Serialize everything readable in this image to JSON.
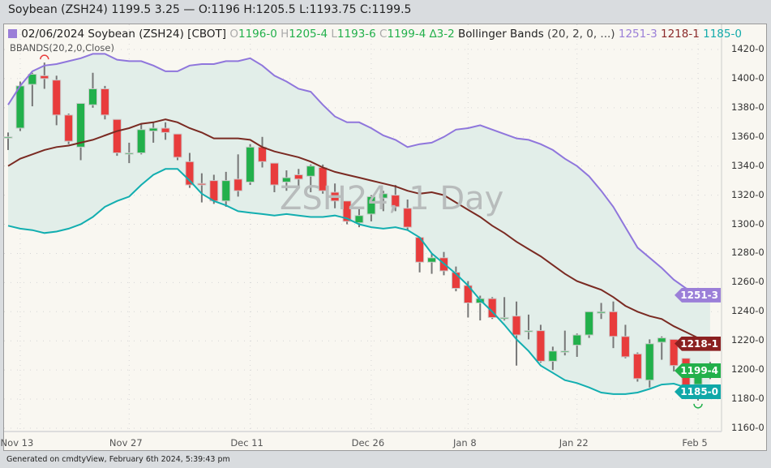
{
  "header": {
    "quote": "Soybean (ZSH24) 1199.5 3.25 — O:1196 H:1205.5 L:1193.75 C:1199.5"
  },
  "legend": {
    "overlap_text": "BBANDS(20,2,0,Close)",
    "instrument": "02/06/2024 Soybean (ZSH24) [CBOT]",
    "o_label": "O",
    "o_value": "1196-0",
    "h_label": "H",
    "h_value": "1205-4",
    "l_label": "L",
    "l_value": "1193-6",
    "c_label": "C",
    "c_value": "1199-4",
    "change": "∆3-2",
    "indicator": "Bollinger Bands",
    "indicator_params": "(20, 2, 0, ...)",
    "upper": "1251-3",
    "middle": "1218-1",
    "lower": "1185-0"
  },
  "watermark": "ZSH24, 1 Day",
  "footer": "Generated on cmdtyView, February 6th 2024, 5:39:43 pm",
  "price_tags": [
    {
      "label": "1251-3",
      "value": 1251.375,
      "color": "#9b7fd8"
    },
    {
      "label": "1218-1",
      "value": 1218.125,
      "color": "#8b2020"
    },
    {
      "label": "1199-4",
      "value": 1199.5,
      "color": "#22b04b"
    },
    {
      "label": "1185-0",
      "value": 1185.0,
      "color": "#10a8a8"
    }
  ],
  "chart_data": {
    "type": "candlestick",
    "ylim": [
      1160,
      1425
    ],
    "y_ticks": [
      1160,
      1180,
      1200,
      1220,
      1240,
      1260,
      1280,
      1300,
      1320,
      1340,
      1360,
      1380,
      1400,
      1420
    ],
    "y_tick_labels": [
      "1160-0",
      "1180-0",
      "1200-0",
      "1220-0",
      "1240-0",
      "1260-0",
      "1280-0",
      "1300-0",
      "1320-0",
      "1340-0",
      "1360-0",
      "1380-0",
      "1400-0",
      "1420-0"
    ],
    "x_tick_labels": [
      {
        "label": "Nov 13",
        "date": "2023-11-13"
      },
      {
        "label": "Nov 27",
        "date": "2023-11-27"
      },
      {
        "label": "Dec 11",
        "date": "2023-12-11"
      },
      {
        "label": "Dec 26",
        "date": "2023-12-26"
      },
      {
        "label": "Jan 8",
        "date": "2024-01-08"
      },
      {
        "label": "Jan 22",
        "date": "2024-01-22"
      },
      {
        "label": "Feb 5",
        "date": "2024-02-05"
      }
    ],
    "grid": true,
    "colors": {
      "up": "#22b04b",
      "down": "#e83c3c",
      "upper": "#8f76dc",
      "middle": "#7a2a22",
      "lower": "#12aeb0",
      "band_fill": "#e2eee9"
    },
    "dates": [
      "2023-11-10",
      "2023-11-13",
      "2023-11-14",
      "2023-11-15",
      "2023-11-16",
      "2023-11-17",
      "2023-11-20",
      "2023-11-21",
      "2023-11-22",
      "2023-11-24",
      "2023-11-27",
      "2023-11-28",
      "2023-11-29",
      "2023-11-30",
      "2023-12-01",
      "2023-12-04",
      "2023-12-05",
      "2023-12-06",
      "2023-12-07",
      "2023-12-08",
      "2023-12-11",
      "2023-12-12",
      "2023-12-13",
      "2023-12-14",
      "2023-12-15",
      "2023-12-18",
      "2023-12-19",
      "2023-12-20",
      "2023-12-21",
      "2023-12-22",
      "2023-12-26",
      "2023-12-27",
      "2023-12-28",
      "2023-12-29",
      "2024-01-02",
      "2024-01-03",
      "2024-01-04",
      "2024-01-05",
      "2024-01-08",
      "2024-01-09",
      "2024-01-10",
      "2024-01-11",
      "2024-01-12",
      "2024-01-16",
      "2024-01-17",
      "2024-01-18",
      "2024-01-19",
      "2024-01-22",
      "2024-01-23",
      "2024-01-24",
      "2024-01-25",
      "2024-01-26",
      "2024-01-29",
      "2024-01-30",
      "2024-01-31",
      "2024-02-01",
      "2024-02-02",
      "2024-02-05",
      "2024-02-06"
    ],
    "ohlc": [
      [
        1360,
        1363,
        1351,
        1360
      ],
      [
        1366,
        1398,
        1364,
        1395
      ],
      [
        1396,
        1404,
        1381,
        1403
      ],
      [
        1402,
        1411,
        1393,
        1400
      ],
      [
        1399,
        1402,
        1368,
        1375
      ],
      [
        1375,
        1376,
        1355,
        1357
      ],
      [
        1353,
        1383,
        1344,
        1383
      ],
      [
        1382,
        1404,
        1380,
        1393
      ],
      [
        1393,
        1395,
        1372,
        1375
      ],
      [
        1372,
        1372,
        1347,
        1349
      ],
      [
        1349,
        1356,
        1342,
        1349
      ],
      [
        1349,
        1369,
        1348,
        1365
      ],
      [
        1364,
        1370,
        1356,
        1366
      ],
      [
        1366,
        1370,
        1358,
        1363
      ],
      [
        1362,
        1362,
        1344,
        1346
      ],
      [
        1343,
        1349,
        1325,
        1327
      ],
      [
        1328,
        1335,
        1315,
        1327
      ],
      [
        1330,
        1334,
        1314,
        1316
      ],
      [
        1316,
        1336,
        1312,
        1330
      ],
      [
        1331,
        1348,
        1319,
        1323
      ],
      [
        1329,
        1355,
        1327,
        1353
      ],
      [
        1353,
        1360,
        1339,
        1343
      ],
      [
        1342,
        1342,
        1322,
        1327
      ],
      [
        1329,
        1337,
        1323,
        1332
      ],
      [
        1334,
        1338,
        1326,
        1331
      ],
      [
        1333,
        1341,
        1322,
        1340
      ],
      [
        1339,
        1341,
        1321,
        1323
      ],
      [
        1322,
        1328,
        1311,
        1316
      ],
      [
        1316,
        1316,
        1300,
        1302
      ],
      [
        1301,
        1311,
        1298,
        1306
      ],
      [
        1307,
        1320,
        1302,
        1319
      ],
      [
        1318,
        1323,
        1309,
        1321
      ],
      [
        1320,
        1327,
        1309,
        1312
      ],
      [
        1311,
        1317,
        1296,
        1298
      ],
      [
        1291,
        1291,
        1267,
        1274
      ],
      [
        1274,
        1280,
        1266,
        1277
      ],
      [
        1277,
        1281,
        1265,
        1268
      ],
      [
        1267,
        1271,
        1254,
        1256
      ],
      [
        1258,
        1261,
        1236,
        1246
      ],
      [
        1246,
        1251,
        1234,
        1249
      ],
      [
        1249,
        1250,
        1235,
        1236
      ],
      [
        1236,
        1250,
        1234,
        1236
      ],
      [
        1237,
        1247,
        1203,
        1224
      ],
      [
        1227,
        1238,
        1221,
        1227
      ],
      [
        1227,
        1231,
        1205,
        1206
      ],
      [
        1206,
        1216,
        1200,
        1213
      ],
      [
        1213,
        1227,
        1210,
        1213
      ],
      [
        1217,
        1225,
        1209,
        1224
      ],
      [
        1224,
        1240,
        1222,
        1240
      ],
      [
        1239,
        1246,
        1235,
        1240
      ],
      [
        1240,
        1247,
        1215,
        1223
      ],
      [
        1223,
        1231,
        1208,
        1209
      ],
      [
        1211,
        1212,
        1192,
        1194
      ],
      [
        1193,
        1221,
        1188,
        1218
      ],
      [
        1219,
        1223,
        1207,
        1222
      ],
      [
        1221,
        1221,
        1199,
        1203
      ],
      [
        1208,
        1208,
        1187,
        1189
      ],
      [
        1190,
        1198,
        1179,
        1196
      ],
      [
        1196,
        1205.5,
        1193.75,
        1199.5
      ]
    ],
    "bollinger": {
      "params": "(20, 2, 0, ...)",
      "upper": [
        1382,
        1395,
        1405,
        1409,
        1410,
        1412,
        1414,
        1417,
        1417,
        1413,
        1412,
        1412,
        1409,
        1405,
        1405,
        1409,
        1410,
        1410,
        1412,
        1412,
        1414,
        1409,
        1402,
        1398,
        1393,
        1391,
        1382,
        1374,
        1370,
        1370,
        1366,
        1361,
        1358,
        1353,
        1355,
        1356,
        1360,
        1365,
        1366,
        1368,
        1365,
        1362,
        1359,
        1358,
        1355,
        1351,
        1345,
        1340,
        1333,
        1323,
        1312,
        1298,
        1284,
        1277,
        1270,
        1262,
        1256,
        1253,
        1251.4
      ],
      "middle": [
        1340,
        1345,
        1348,
        1351,
        1353,
        1354,
        1356,
        1358,
        1361,
        1364,
        1366,
        1369,
        1370,
        1372,
        1370,
        1366,
        1363,
        1359,
        1359,
        1359,
        1358,
        1353,
        1350,
        1348,
        1346,
        1343,
        1339,
        1336,
        1334,
        1332,
        1330,
        1328,
        1326,
        1323,
        1321,
        1322,
        1320,
        1315,
        1310,
        1305,
        1299,
        1294,
        1288,
        1283,
        1278,
        1272,
        1266,
        1261,
        1258,
        1255,
        1250,
        1244,
        1240,
        1237,
        1235,
        1230,
        1226,
        1222,
        1218.1
      ],
      "lower": [
        1299,
        1297,
        1296,
        1294,
        1295,
        1297,
        1300,
        1305,
        1312,
        1316,
        1319,
        1327,
        1334,
        1338,
        1338,
        1330,
        1321,
        1316,
        1313,
        1309,
        1308,
        1307,
        1306,
        1307,
        1306,
        1305,
        1305,
        1306,
        1304,
        1300,
        1298,
        1297,
        1298,
        1296,
        1291,
        1280,
        1273,
        1266,
        1258,
        1248,
        1240,
        1231,
        1221,
        1213,
        1203,
        1198,
        1193,
        1191,
        1188,
        1184.5,
        1183.4,
        1183.4,
        1184.5,
        1187,
        1190,
        1190.6,
        1188,
        1186.7,
        1185
      ]
    },
    "markers": [
      {
        "type": "highest-high",
        "index": 3,
        "color": "#e83c3c"
      },
      {
        "type": "lowest-low",
        "index": 57,
        "color": "#22b04b"
      }
    ]
  }
}
